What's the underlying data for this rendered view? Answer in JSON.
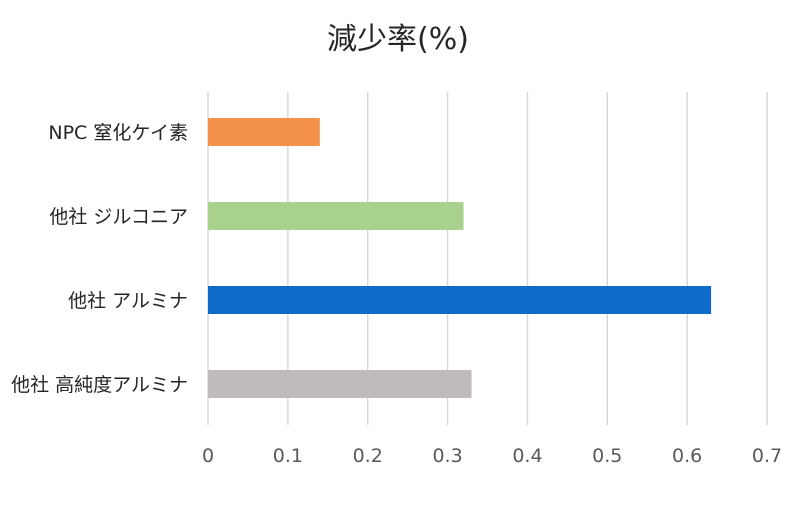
{
  "chart_data": {
    "type": "bar",
    "orientation": "horizontal",
    "title": "減少率(%)",
    "categories": [
      "NPC 窒化ケイ素",
      "他社 ジルコニア",
      "他社 アルミナ",
      "他社 高純度アルミナ"
    ],
    "values": [
      0.14,
      0.32,
      0.63,
      0.33
    ],
    "bar_colors": [
      "#F4914A",
      "#A9D18E",
      "#0E6BC8",
      "#BFBBBB"
    ],
    "xlim": [
      0,
      0.7
    ],
    "x_ticks": [
      "0",
      "0.1",
      "0.2",
      "0.3",
      "0.4",
      "0.5",
      "0.6",
      "0.7"
    ],
    "grid": true,
    "legend": "none"
  }
}
